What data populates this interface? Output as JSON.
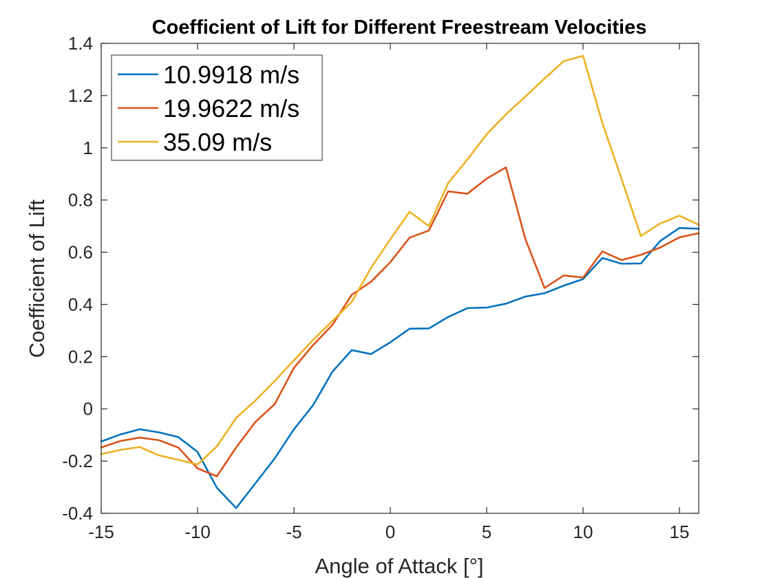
{
  "chart_data": {
    "type": "line",
    "title": "Coefficient of Lift for Different Freestream Velocities",
    "xlabel": "Angle of Attack [°]",
    "ylabel": "Coefficient of Lift",
    "xlim": [
      -15,
      16
    ],
    "ylim": [
      -0.4,
      1.4
    ],
    "xticks": [
      -15,
      -10,
      -5,
      0,
      5,
      10,
      15
    ],
    "xtick_labels": [
      "-15",
      "-10",
      "-5",
      "0",
      "5",
      "10",
      "15"
    ],
    "yticks": [
      -0.4,
      -0.2,
      0,
      0.2,
      0.4,
      0.6,
      0.8,
      1,
      1.2,
      1.4
    ],
    "ytick_labels": [
      "-0.4",
      "-0.2",
      "0",
      "0.2",
      "0.4",
      "0.6",
      "0.8",
      "1",
      "1.2",
      "1.4"
    ],
    "grid": false,
    "legend_position": "top-left",
    "x": [
      -15,
      -14,
      -13,
      -12,
      -11,
      -10,
      -9,
      -8,
      -7,
      -6,
      -5,
      -4,
      -3,
      -2,
      -1,
      0,
      1,
      2,
      3,
      4,
      5,
      6,
      7,
      8,
      9,
      10,
      11,
      12,
      13,
      14,
      15,
      16
    ],
    "series": [
      {
        "name": "10.9918 m/s",
        "color": "#0072BD",
        "values": [
          -0.125,
          -0.098,
          -0.078,
          -0.09,
          -0.108,
          -0.165,
          -0.302,
          -0.38,
          -0.285,
          -0.19,
          -0.078,
          0.015,
          0.143,
          0.225,
          0.21,
          0.255,
          0.307,
          0.308,
          0.352,
          0.386,
          0.388,
          0.403,
          0.43,
          0.443,
          0.472,
          0.497,
          0.578,
          0.556,
          0.557,
          0.643,
          0.693,
          0.69
        ]
      },
      {
        "name": "19.9622 m/s",
        "color": "#D95319",
        "values": [
          -0.148,
          -0.123,
          -0.11,
          -0.12,
          -0.148,
          -0.228,
          -0.258,
          -0.148,
          -0.05,
          0.018,
          0.157,
          0.245,
          0.322,
          0.437,
          0.487,
          0.562,
          0.656,
          0.683,
          0.833,
          0.824,
          0.882,
          0.925,
          0.652,
          0.463,
          0.511,
          0.503,
          0.603,
          0.57,
          0.59,
          0.618,
          0.657,
          0.673
        ]
      },
      {
        "name": "35.09 m/s",
        "color": "#EDB120",
        "values": [
          -0.173,
          -0.157,
          -0.146,
          -0.178,
          -0.195,
          -0.213,
          -0.144,
          -0.035,
          0.032,
          0.107,
          0.186,
          0.265,
          0.337,
          0.41,
          0.54,
          0.65,
          0.755,
          0.7,
          0.865,
          0.955,
          1.052,
          1.128,
          1.196,
          1.265,
          1.332,
          1.352,
          1.095,
          0.88,
          0.662,
          0.71,
          0.74,
          0.705
        ]
      }
    ]
  }
}
